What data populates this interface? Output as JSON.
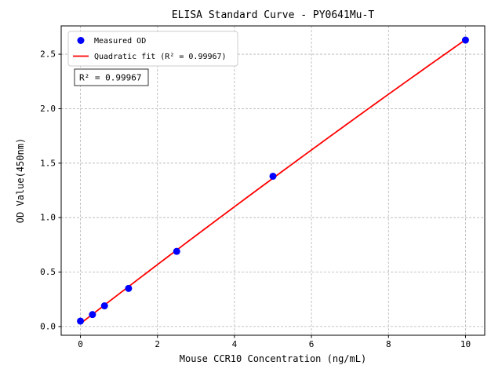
{
  "chart_data": {
    "type": "scatter",
    "title": "ELISA Standard Curve - PY0641Mu-T",
    "xlabel": "Mouse CCR10 Concentration (ng/mL)",
    "ylabel": "OD Value(450nm)",
    "x": [
      0,
      0.3125,
      0.625,
      1.25,
      2.5,
      5,
      10
    ],
    "series": [
      {
        "name": "Measured OD",
        "type": "scatter",
        "marker": "circle",
        "color": "#0000ff",
        "values": [
          0.05,
          0.11,
          0.19,
          0.35,
          0.69,
          1.38,
          2.63
        ]
      },
      {
        "name": "Quadratic fit (R² = 0.99967)",
        "type": "line",
        "color": "#ff0000",
        "fit": "quadratic"
      }
    ],
    "annotation": "R² = 0.99967",
    "r_squared": 0.99967,
    "xlim": [
      -0.5,
      10.5
    ],
    "ylim": [
      -0.08,
      2.76
    ],
    "xticks": [
      0,
      2,
      4,
      6,
      8,
      10
    ],
    "xtick_labels": [
      "0",
      "2",
      "4",
      "6",
      "8",
      "10"
    ],
    "yticks": [
      0,
      0.5,
      1,
      1.5,
      2,
      2.5
    ],
    "ytick_labels": [
      "0.0",
      "0.5",
      "1.0",
      "1.5",
      "2.0",
      "2.5"
    ],
    "grid": true,
    "grid_style": "dashed",
    "legend_position": "upper left"
  },
  "colors": {
    "measured": "#0000ff",
    "fit": "#ff0000",
    "grid": "#b5b5b5",
    "axes": "#000000",
    "background": "#ffffff"
  }
}
